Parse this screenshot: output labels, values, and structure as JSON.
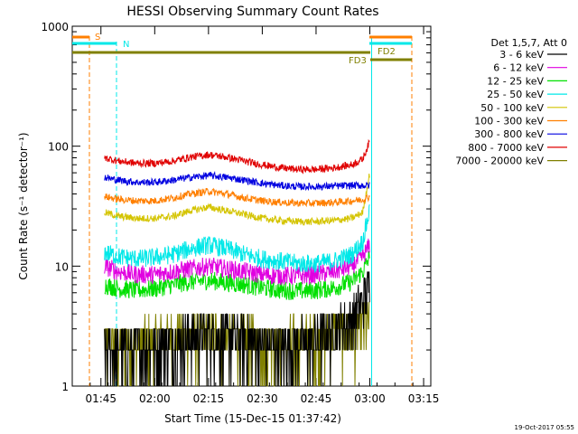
{
  "chart_data": {
    "type": "line",
    "title": "HESSI Observing Summary Count Rates",
    "xlabel": "Start Time (15-Dec-15 01:37:42)",
    "ylabel": "Count Rate (s⁻¹ detector⁻¹)",
    "ylim": [
      1,
      1000
    ],
    "yscale": "log",
    "xlim_minutes_after_0137": [
      0,
      100
    ],
    "x_ticks": [
      "01:45",
      "02:00",
      "02:15",
      "02:30",
      "02:45",
      "03:00",
      "03:15"
    ],
    "y_ticks": [
      "1",
      "10",
      "100",
      "1000"
    ],
    "legend": {
      "title": "Det 1,5,7, Att 0",
      "placement": "right"
    },
    "markers": {
      "S": "S",
      "N": "N",
      "FD2": "FD2",
      "FD3": "FD3"
    },
    "series": [
      {
        "name": "3 - 6 keV",
        "color": "#000000",
        "x": [
          "01:46",
          "01:50",
          "01:55",
          "02:00",
          "02:05",
          "02:10",
          "02:15",
          "02:20",
          "02:25",
          "02:30",
          "02:35",
          "02:40",
          "02:45",
          "02:50",
          "02:55",
          "02:58",
          "03:00"
        ],
        "values": [
          2,
          1.8,
          2,
          2.2,
          2.3,
          2.5,
          2.6,
          2.4,
          2.3,
          2.2,
          2.1,
          2.2,
          2.4,
          2.8,
          3.5,
          5,
          6.5
        ]
      },
      {
        "name": "6 - 12 keV",
        "color": "#e000e0",
        "x": [
          "01:46",
          "01:50",
          "01:55",
          "02:00",
          "02:05",
          "02:10",
          "02:15",
          "02:20",
          "02:25",
          "02:30",
          "02:35",
          "02:40",
          "02:45",
          "02:50",
          "02:55",
          "02:58",
          "03:00"
        ],
        "values": [
          10,
          9,
          8.5,
          8.5,
          9,
          9.5,
          10,
          9.5,
          9,
          8.5,
          8.3,
          8.3,
          8.5,
          9,
          10,
          12,
          15
        ]
      },
      {
        "name": "12 - 25 keV",
        "color": "#00e000",
        "x": [
          "01:46",
          "01:50",
          "01:55",
          "02:00",
          "02:05",
          "02:10",
          "02:15",
          "02:20",
          "02:25",
          "02:30",
          "02:35",
          "02:40",
          "02:45",
          "02:50",
          "02:55",
          "02:58",
          "03:00"
        ],
        "values": [
          7,
          6.5,
          6.3,
          6.5,
          7,
          7.4,
          7.6,
          7.3,
          7,
          6.6,
          6.3,
          6.2,
          6.3,
          6.6,
          7.4,
          9,
          12
        ]
      },
      {
        "name": "25 - 50 keV",
        "color": "#00e8e8",
        "x": [
          "01:46",
          "01:50",
          "01:55",
          "02:00",
          "02:05",
          "02:10",
          "02:15",
          "02:20",
          "02:25",
          "02:30",
          "02:35",
          "02:40",
          "02:45",
          "02:50",
          "02:55",
          "02:58",
          "03:00"
        ],
        "values": [
          13,
          12,
          11.5,
          11.8,
          12.5,
          14,
          15,
          14,
          12.5,
          11.5,
          11,
          10.5,
          10.5,
          11,
          12.5,
          16,
          30
        ]
      },
      {
        "name": "50 - 100 keV",
        "color": "#d4c400",
        "x": [
          "01:46",
          "01:50",
          "01:55",
          "02:00",
          "02:05",
          "02:10",
          "02:15",
          "02:20",
          "02:25",
          "02:30",
          "02:35",
          "02:40",
          "02:45",
          "02:50",
          "02:55",
          "02:58",
          "03:00"
        ],
        "values": [
          28,
          26,
          25,
          25,
          26,
          29,
          31,
          29,
          27,
          25,
          24,
          23.5,
          23.5,
          24,
          25,
          28,
          60
        ]
      },
      {
        "name": "100 - 300 keV",
        "color": "#ff7f00",
        "x": [
          "01:46",
          "01:50",
          "01:55",
          "02:00",
          "02:05",
          "02:10",
          "02:15",
          "02:20",
          "02:25",
          "02:30",
          "02:35",
          "02:40",
          "02:45",
          "02:50",
          "02:55",
          "02:58",
          "03:00"
        ],
        "values": [
          38,
          36,
          35,
          35,
          37,
          40,
          42,
          40,
          37,
          35,
          34,
          33.5,
          33.5,
          34,
          35,
          36,
          38
        ]
      },
      {
        "name": "300 - 800 keV",
        "color": "#0000e0",
        "x": [
          "01:46",
          "01:50",
          "01:55",
          "02:00",
          "02:05",
          "02:10",
          "02:15",
          "02:20",
          "02:25",
          "02:30",
          "02:35",
          "02:40",
          "02:45",
          "02:50",
          "02:55",
          "02:58",
          "03:00"
        ],
        "values": [
          55,
          52,
          50,
          50,
          52,
          55,
          57,
          55,
          52,
          49,
          47,
          46,
          46,
          46.5,
          47,
          47,
          47
        ]
      },
      {
        "name": "800 - 7000 keV",
        "color": "#e00000",
        "x": [
          "01:46",
          "01:50",
          "01:55",
          "02:00",
          "02:05",
          "02:10",
          "02:15",
          "02:20",
          "02:25",
          "02:30",
          "02:35",
          "02:40",
          "02:45",
          "02:50",
          "02:55",
          "02:58",
          "03:00"
        ],
        "values": [
          80,
          75,
          72,
          72,
          75,
          81,
          85,
          81,
          75,
          70,
          66,
          64,
          64,
          66,
          70,
          78,
          110
        ]
      },
      {
        "name": "7000 - 20000 keV",
        "color": "#808000",
        "x": [
          "01:46",
          "01:50",
          "01:55",
          "02:00",
          "02:05",
          "02:10",
          "02:15",
          "02:20",
          "02:25",
          "02:30",
          "02:35",
          "02:40",
          "02:45",
          "02:50",
          "02:55",
          "02:58",
          "03:00"
        ],
        "values": [
          2.2,
          2,
          2.2,
          2.4,
          2.5,
          2.5,
          2.6,
          2.5,
          2.4,
          2.3,
          2.2,
          2.3,
          2.4,
          2.6,
          2.8,
          3,
          3.2
        ]
      }
    ],
    "footer": "19-Oct-2017 05:55"
  }
}
